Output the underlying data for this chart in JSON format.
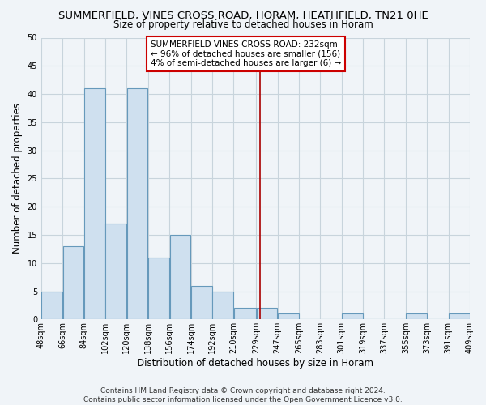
{
  "title": "SUMMERFIELD, VINES CROSS ROAD, HORAM, HEATHFIELD, TN21 0HE",
  "subtitle": "Size of property relative to detached houses in Horam",
  "xlabel": "Distribution of detached houses by size in Horam",
  "ylabel": "Number of detached properties",
  "bar_color": "#cfe0ef",
  "bar_edge_color": "#6699bb",
  "background_color": "#f0f4f8",
  "grid_color": "#c8d4dc",
  "bin_edges": [
    48,
    66,
    84,
    102,
    120,
    138,
    156,
    174,
    192,
    210,
    229,
    247,
    265,
    283,
    301,
    319,
    337,
    355,
    373,
    391,
    409
  ],
  "bin_labels": [
    "48sqm",
    "66sqm",
    "84sqm",
    "102sqm",
    "120sqm",
    "138sqm",
    "156sqm",
    "174sqm",
    "192sqm",
    "210sqm",
    "229sqm",
    "247sqm",
    "265sqm",
    "283sqm",
    "301sqm",
    "319sqm",
    "337sqm",
    "355sqm",
    "373sqm",
    "391sqm",
    "409sqm"
  ],
  "counts": [
    5,
    13,
    41,
    17,
    41,
    11,
    15,
    6,
    5,
    2,
    2,
    1,
    0,
    0,
    1,
    0,
    0,
    1,
    0,
    1
  ],
  "property_size": 232,
  "property_line_color": "#aa0000",
  "annotation_line1": "SUMMERFIELD VINES CROSS ROAD: 232sqm",
  "annotation_line2": "← 96% of detached houses are smaller (156)",
  "annotation_line3": "4% of semi-detached houses are larger (6) →",
  "annotation_box_color": "#ffffff",
  "annotation_box_edge_color": "#cc0000",
  "ylim": [
    0,
    50
  ],
  "yticks": [
    0,
    5,
    10,
    15,
    20,
    25,
    30,
    35,
    40,
    45,
    50
  ],
  "footer_line1": "Contains HM Land Registry data © Crown copyright and database right 2024.",
  "footer_line2": "Contains public sector information licensed under the Open Government Licence v3.0.",
  "title_fontsize": 9.5,
  "subtitle_fontsize": 8.5,
  "axis_label_fontsize": 8.5,
  "tick_fontsize": 7,
  "annotation_fontsize": 7.5,
  "footer_fontsize": 6.5
}
